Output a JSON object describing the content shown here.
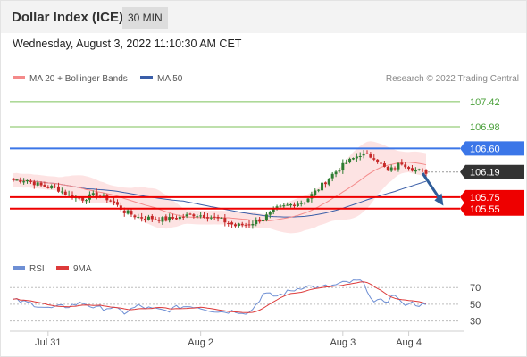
{
  "header": {
    "instrument": "Dollar Index (ICE)",
    "timeframe": "30 MIN",
    "datetime": "Wednesday, August 3, 2022 11:10:30 AM CET"
  },
  "legend": {
    "ma20_bb": "MA 20 + Bollinger Bands",
    "ma50": "MA 50",
    "credit": "Research © 2022 Trading Central",
    "rsi": "RSI",
    "ma9": "9MA"
  },
  "colors": {
    "ma20": "#f48a8a",
    "bands_fill": "#fde3e3",
    "ma50": "#3a5ea8",
    "bull_candle": "#2e7d32",
    "bear_candle": "#c62828",
    "pivot_line": "#3b76e8",
    "support": "#ee0000",
    "resistance": "#7cc25a",
    "last_tag": "#333333",
    "forecast_arrow": "#2f5d9a",
    "rsi_line": "#6e8fd4",
    "rsi_ma": "#dd3a3a"
  },
  "chart_data": {
    "type": "candlestick",
    "x_ticks": [
      "Jul 31",
      "Aug 2",
      "Aug 3",
      "Aug 4"
    ],
    "x_tick_index": [
      10,
      54,
      95,
      114
    ],
    "ylim": [
      105.25,
      107.62
    ],
    "bar_count": 120,
    "levels": [
      {
        "label": "107.42",
        "value": 107.42,
        "kind": "resistance"
      },
      {
        "label": "106.98",
        "value": 106.98,
        "kind": "resistance"
      },
      {
        "label": "106.60",
        "value": 106.6,
        "kind": "pivot"
      },
      {
        "label": "106.19",
        "value": 106.19,
        "kind": "last"
      },
      {
        "label": "105.75",
        "value": 105.75,
        "kind": "support"
      },
      {
        "label": "105.55",
        "value": 105.55,
        "kind": "support"
      }
    ],
    "forecast": {
      "from_index": 118,
      "from_value": 106.17,
      "to_index": 124,
      "to_value": 105.6
    },
    "close_anchors": [
      [
        0,
        106.05
      ],
      [
        4,
        106.05
      ],
      [
        8,
        105.95
      ],
      [
        12,
        105.92
      ],
      [
        16,
        105.78
      ],
      [
        20,
        105.72
      ],
      [
        24,
        105.8
      ],
      [
        28,
        105.7
      ],
      [
        32,
        105.5
      ],
      [
        36,
        105.4
      ],
      [
        40,
        105.38
      ],
      [
        44,
        105.36
      ],
      [
        48,
        105.4
      ],
      [
        52,
        105.45
      ],
      [
        56,
        105.42
      ],
      [
        60,
        105.35
      ],
      [
        64,
        105.25
      ],
      [
        68,
        105.28
      ],
      [
        72,
        105.38
      ],
      [
        76,
        105.55
      ],
      [
        80,
        105.62
      ],
      [
        84,
        105.68
      ],
      [
        88,
        105.9
      ],
      [
        92,
        106.15
      ],
      [
        96,
        106.35
      ],
      [
        100,
        106.5
      ],
      [
        104,
        106.45
      ],
      [
        108,
        106.2
      ],
      [
        112,
        106.35
      ],
      [
        116,
        106.22
      ],
      [
        119,
        106.19
      ]
    ],
    "rsi": {
      "levels": [
        70,
        50,
        30
      ],
      "ylim": [
        20,
        82
      ],
      "anchors": [
        [
          0,
          55
        ],
        [
          6,
          50
        ],
        [
          10,
          45
        ],
        [
          16,
          48
        ],
        [
          20,
          52
        ],
        [
          24,
          45
        ],
        [
          28,
          46
        ],
        [
          32,
          40
        ],
        [
          36,
          48
        ],
        [
          40,
          44
        ],
        [
          44,
          42
        ],
        [
          48,
          47
        ],
        [
          52,
          48
        ],
        [
          56,
          44
        ],
        [
          60,
          41
        ],
        [
          64,
          42
        ],
        [
          68,
          40
        ],
        [
          70,
          50
        ],
        [
          72,
          62
        ],
        [
          76,
          60
        ],
        [
          80,
          66
        ],
        [
          84,
          72
        ],
        [
          88,
          70
        ],
        [
          92,
          72
        ],
        [
          96,
          76
        ],
        [
          100,
          78
        ],
        [
          102,
          68
        ],
        [
          104,
          52
        ],
        [
          108,
          55
        ],
        [
          110,
          62
        ],
        [
          112,
          50
        ],
        [
          114,
          52
        ],
        [
          119,
          48
        ]
      ]
    }
  }
}
